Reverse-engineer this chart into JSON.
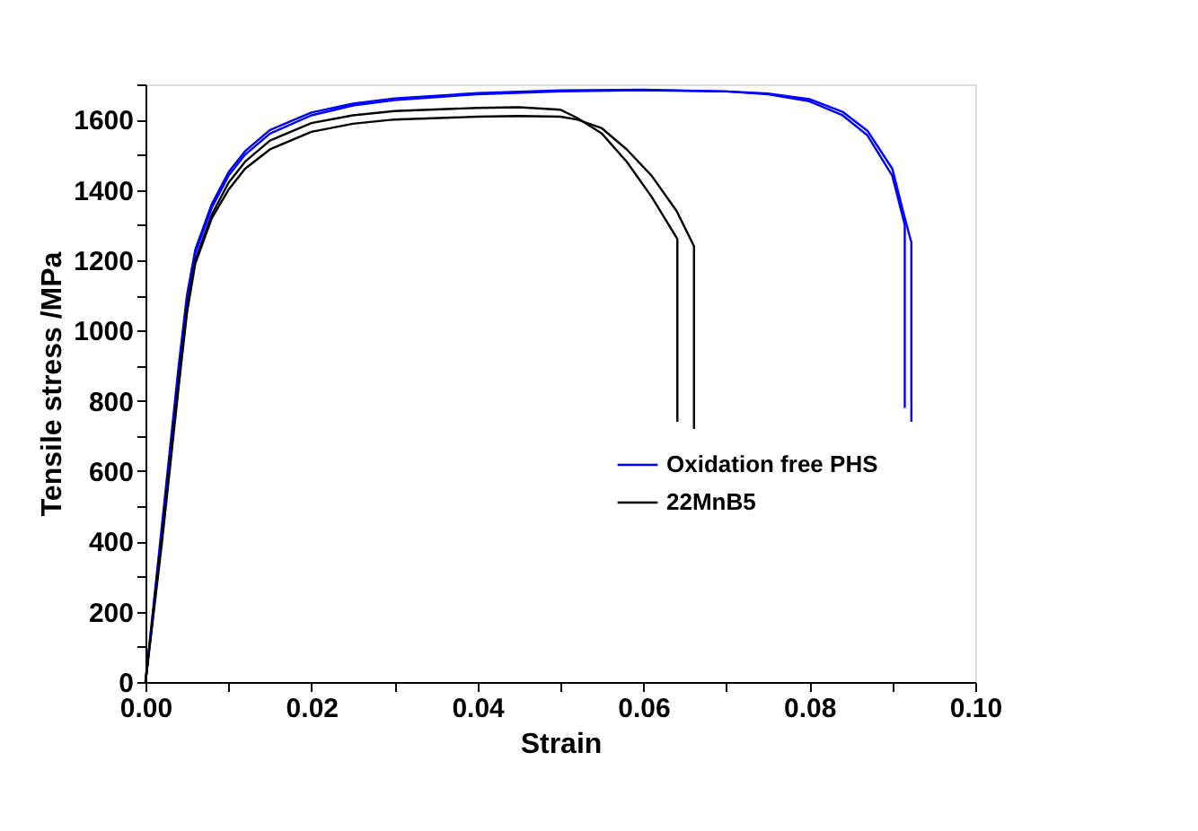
{
  "chart_data": {
    "type": "line",
    "xlabel": "Strain",
    "ylabel": "Tensile stress /MPa",
    "xlim": [
      0,
      0.1
    ],
    "ylim": [
      0,
      1700
    ],
    "xticks": [
      {
        "value": 0,
        "label": "0.00"
      },
      {
        "value": 0.01,
        "label": null
      },
      {
        "value": 0.02,
        "label": "0.02"
      },
      {
        "value": 0.03,
        "label": null
      },
      {
        "value": 0.04,
        "label": "0.04"
      },
      {
        "value": 0.05,
        "label": null
      },
      {
        "value": 0.06,
        "label": "0.06"
      },
      {
        "value": 0.07,
        "label": null
      },
      {
        "value": 0.08,
        "label": "0.08"
      },
      {
        "value": 0.09,
        "label": null
      },
      {
        "value": 0.1,
        "label": "0.10"
      }
    ],
    "yticks": [
      0,
      {
        "value": 100,
        "label": null
      },
      200,
      {
        "value": 300,
        "label": null
      },
      400,
      {
        "value": 500,
        "label": null
      },
      600,
      {
        "value": 700,
        "label": null
      },
      800,
      {
        "value": 900,
        "label": null
      },
      1000,
      {
        "value": 1100,
        "label": null
      },
      1200,
      {
        "value": 1300,
        "label": null
      },
      1400,
      {
        "value": 1500,
        "label": null
      },
      1600,
      {
        "value": 1700,
        "label": null
      }
    ],
    "legend": "right",
    "grid": false,
    "series": [
      {
        "name": "Oxidation free PHS",
        "color": "#0000ff",
        "x": [
          0,
          0.002,
          0.004,
          0.005,
          0.006,
          0.008,
          0.01,
          0.012,
          0.015,
          0.02,
          0.025,
          0.03,
          0.04,
          0.05,
          0.06,
          0.07,
          0.075,
          0.08,
          0.084,
          0.087,
          0.09,
          0.0915,
          0.0915
        ],
        "values": [
          0,
          450,
          900,
          1100,
          1230,
          1360,
          1450,
          1510,
          1570,
          1620,
          1645,
          1660,
          1675,
          1683,
          1685,
          1680,
          1672,
          1652,
          1612,
          1555,
          1440,
          1300,
          780
        ]
      },
      {
        "color": "#0000ff",
        "x": [
          0,
          0.002,
          0.004,
          0.005,
          0.006,
          0.008,
          0.01,
          0.012,
          0.015,
          0.02,
          0.025,
          0.03,
          0.04,
          0.05,
          0.06,
          0.07,
          0.075,
          0.08,
          0.084,
          0.087,
          0.09,
          0.0915,
          0.0923,
          0.0923
        ],
        "values": [
          0,
          430,
          880,
          1090,
          1220,
          1350,
          1440,
          1500,
          1560,
          1612,
          1640,
          1655,
          1672,
          1680,
          1683,
          1680,
          1674,
          1658,
          1622,
          1568,
          1460,
          1320,
          1250,
          740
        ]
      },
      {
        "name": "22MnB5",
        "color": "#000000",
        "x": [
          0,
          0.002,
          0.004,
          0.005,
          0.006,
          0.008,
          0.01,
          0.012,
          0.015,
          0.02,
          0.025,
          0.03,
          0.04,
          0.045,
          0.05,
          0.052,
          0.055,
          0.058,
          0.061,
          0.0641,
          0.0641
        ],
        "values": [
          0,
          420,
          860,
          1070,
          1200,
          1330,
          1420,
          1480,
          1540,
          1590,
          1612,
          1624,
          1633,
          1635,
          1628,
          1605,
          1560,
          1480,
          1380,
          1260,
          740
        ]
      },
      {
        "color": "#000000",
        "x": [
          0,
          0.002,
          0.004,
          0.005,
          0.006,
          0.008,
          0.01,
          0.012,
          0.015,
          0.02,
          0.025,
          0.03,
          0.04,
          0.045,
          0.05,
          0.052,
          0.055,
          0.058,
          0.061,
          0.064,
          0.0661,
          0.0661
        ],
        "values": [
          0,
          400,
          840,
          1050,
          1190,
          1320,
          1400,
          1460,
          1515,
          1565,
          1588,
          1600,
          1608,
          1610,
          1608,
          1600,
          1575,
          1515,
          1440,
          1340,
          1240,
          720
        ]
      }
    ]
  }
}
